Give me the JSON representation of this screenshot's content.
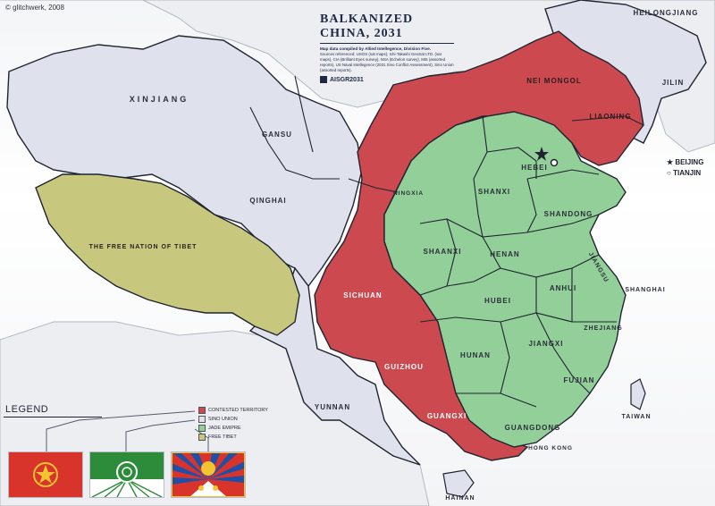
{
  "credit": "© glitchwerk, 2008",
  "header": {
    "title": "BALKANIZED CHINA, 2031",
    "subtitle": "Map data compiled by Allied Intellegence, Division Five.",
    "sources": "Sources referenced: USGS (sat maps), Ichi-Takashi GeoSat LTD. (sat maps), CIA (Brilliant Eyes survey), NSA (Echelon survey), MI5 (assorted reports), US Naval Intellegence (2031 Sino Conflict Assessment), Sino Union (assorted reports).",
    "code": "AISGR2031"
  },
  "regions": {
    "heilongjiang": "HEILONGJIANG",
    "jilin": "JILIN",
    "nei_mongol": "NEI MONGOL",
    "liaoning": "LIAONING",
    "xinjiang": "XINJIANG",
    "gansu": "GANSU",
    "qinghai": "QINGHAI",
    "tibet": "THE FREE NATION OF TIBET",
    "ningxia": "NINGXIA",
    "hebei": "HEBEI",
    "shanxi": "SHANXI",
    "shandong": "SHANDONG",
    "shaanxi": "SHAANXI",
    "henan": "HENAN",
    "jiangsu": "JIANGSU",
    "anhui": "ANHUI",
    "hubei": "HUBEI",
    "sichuan": "SICHUAN",
    "zhejiang": "ZHEJIANG",
    "hunan": "HUNAN",
    "jiangxi": "JIANGXI",
    "fujian": "FUJIAN",
    "guizhou": "GUIZHOU",
    "yunnan": "YUNNAN",
    "guangxi": "GUANGXI",
    "guangdong": "GUANGDONG",
    "hong_kong": "HONG KONG",
    "taiwan": "TAIWAN",
    "hainan": "HAINAN"
  },
  "cities": {
    "beijing": "BEIJING",
    "tianjin": "TIANJIN",
    "shanghai": "SHANGHAI"
  },
  "legend": {
    "title": "LEGEND",
    "items": [
      {
        "label": "CONTESTED TERRITORY",
        "color": "#cc4a4f"
      },
      {
        "label": "SINO UNION",
        "color": "#dfe2ec"
      },
      {
        "label": "JADE EMIPRE",
        "color": "#93cf98"
      },
      {
        "label": "FREE TIBET",
        "color": "#c7c77e"
      }
    ],
    "flags": [
      "contested-flag",
      "jade-empire-flag",
      "tibet-flag"
    ]
  },
  "colors": {
    "contested": "#cc4a4f",
    "sino_union": "#dfe2ec",
    "jade_empire": "#93cf98",
    "free_tibet": "#c7c77e",
    "border": "#1f2430"
  }
}
